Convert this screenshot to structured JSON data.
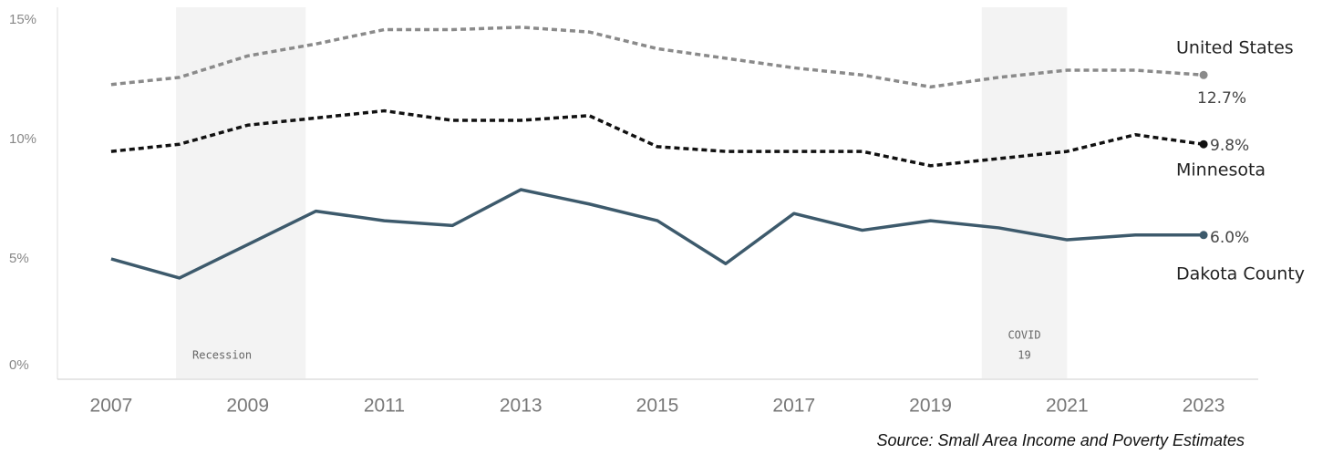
{
  "chart_data": {
    "type": "line",
    "x": [
      2007,
      2008,
      2009,
      2010,
      2011,
      2012,
      2013,
      2014,
      2015,
      2016,
      2017,
      2018,
      2019,
      2020,
      2021,
      2022,
      2023
    ],
    "xlim": [
      2006.24,
      2023.8
    ],
    "xticks": [
      2007,
      2009,
      2011,
      2013,
      2015,
      2017,
      2019,
      2021,
      2023
    ],
    "ylim": [
      0,
      15
    ],
    "yticks": [
      {
        "value": 0,
        "label": "0%"
      },
      {
        "value": 5,
        "label": "5%"
      },
      {
        "value": 10,
        "label": "10%"
      },
      {
        "value": 15,
        "label": "15%"
      }
    ],
    "series": [
      {
        "name": "United States",
        "color": "#8a8a8a",
        "style": "dotted",
        "end_label": "12.7%",
        "values": [
          12.3,
          12.6,
          13.5,
          14.0,
          14.6,
          14.6,
          14.7,
          14.5,
          13.8,
          13.4,
          13.0,
          12.7,
          12.2,
          12.6,
          12.9,
          12.9,
          12.7
        ]
      },
      {
        "name": "Minnesota",
        "color": "#111111",
        "style": "dotted",
        "end_label": "9.8%",
        "values": [
          9.5,
          9.8,
          10.6,
          10.9,
          11.2,
          10.8,
          10.8,
          11.0,
          9.7,
          9.5,
          9.5,
          9.5,
          8.9,
          9.2,
          9.5,
          10.2,
          9.8
        ]
      },
      {
        "name": "Dakota County",
        "color": "#3d5a6c",
        "style": "solid",
        "end_label": "6.0%",
        "values": [
          5.0,
          4.2,
          5.6,
          7.0,
          6.6,
          6.4,
          7.9,
          7.3,
          6.6,
          4.8,
          6.9,
          6.2,
          6.6,
          6.3,
          5.8,
          6.0,
          6.0
        ]
      }
    ],
    "annotations": [
      {
        "lines": [
          "Recession"
        ],
        "x": [
          2007.95,
          2009.85
        ]
      },
      {
        "lines": [
          "COVID",
          "19"
        ],
        "x": [
          2019.75,
          2021.0
        ]
      }
    ],
    "source": "Source: Small Area Income and Poverty Estimates"
  }
}
